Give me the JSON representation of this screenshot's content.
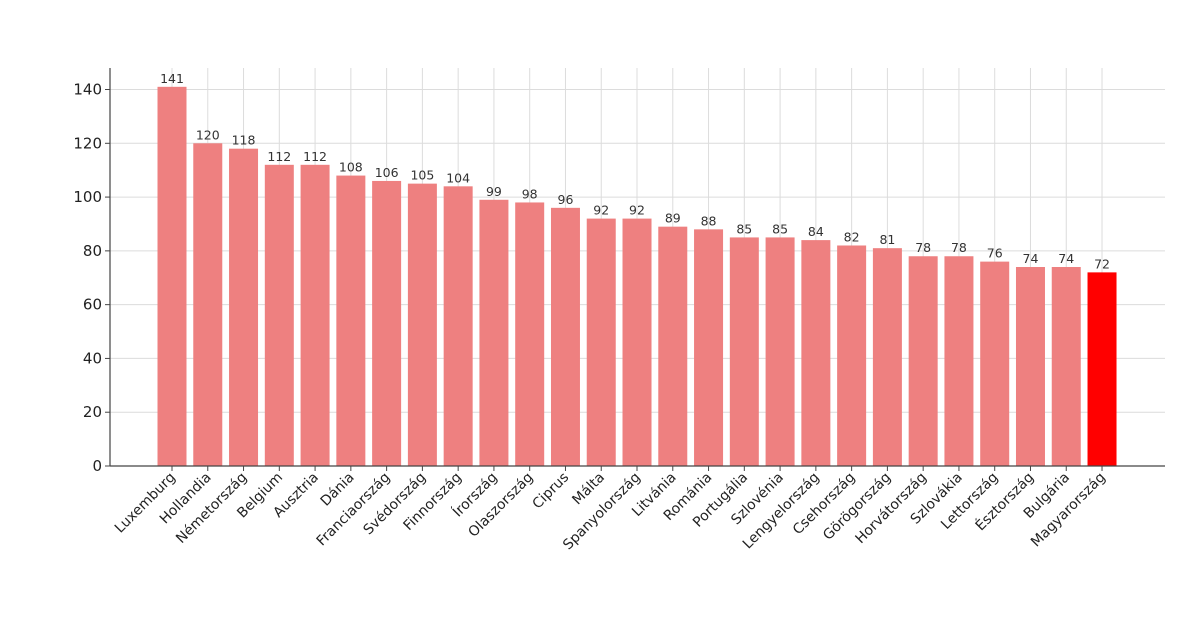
{
  "chart_data": {
    "type": "bar",
    "title": "",
    "xlabel": "",
    "ylabel": "",
    "ylim": [
      0,
      148
    ],
    "yticks": [
      0,
      20,
      40,
      60,
      80,
      100,
      120,
      140
    ],
    "grid": true,
    "categories": [
      "Luxemburg",
      "Hollandia",
      "Németország",
      "Belgium",
      "Ausztria",
      "Dánia",
      "Franciaország",
      "Svédország",
      "Finnország",
      "Írország",
      "Olaszország",
      "Ciprus",
      "Málta",
      "Spanyolország",
      "Litvánia",
      "Románia",
      "Portugália",
      "Szlovénia",
      "Lengyelország",
      "Csehország",
      "Görögország",
      "Horvátország",
      "Szlovákia",
      "Lettország",
      "Észtország",
      "Bulgária",
      "Magyarország"
    ],
    "values": [
      141,
      120,
      118,
      112,
      112,
      108,
      106,
      105,
      104,
      99,
      98,
      96,
      92,
      92,
      89,
      88,
      85,
      85,
      84,
      82,
      81,
      78,
      78,
      76,
      74,
      74,
      72
    ],
    "bar_color": "#ee8080",
    "highlight_color": "#ff0000",
    "highlight_category": "Magyarország"
  }
}
